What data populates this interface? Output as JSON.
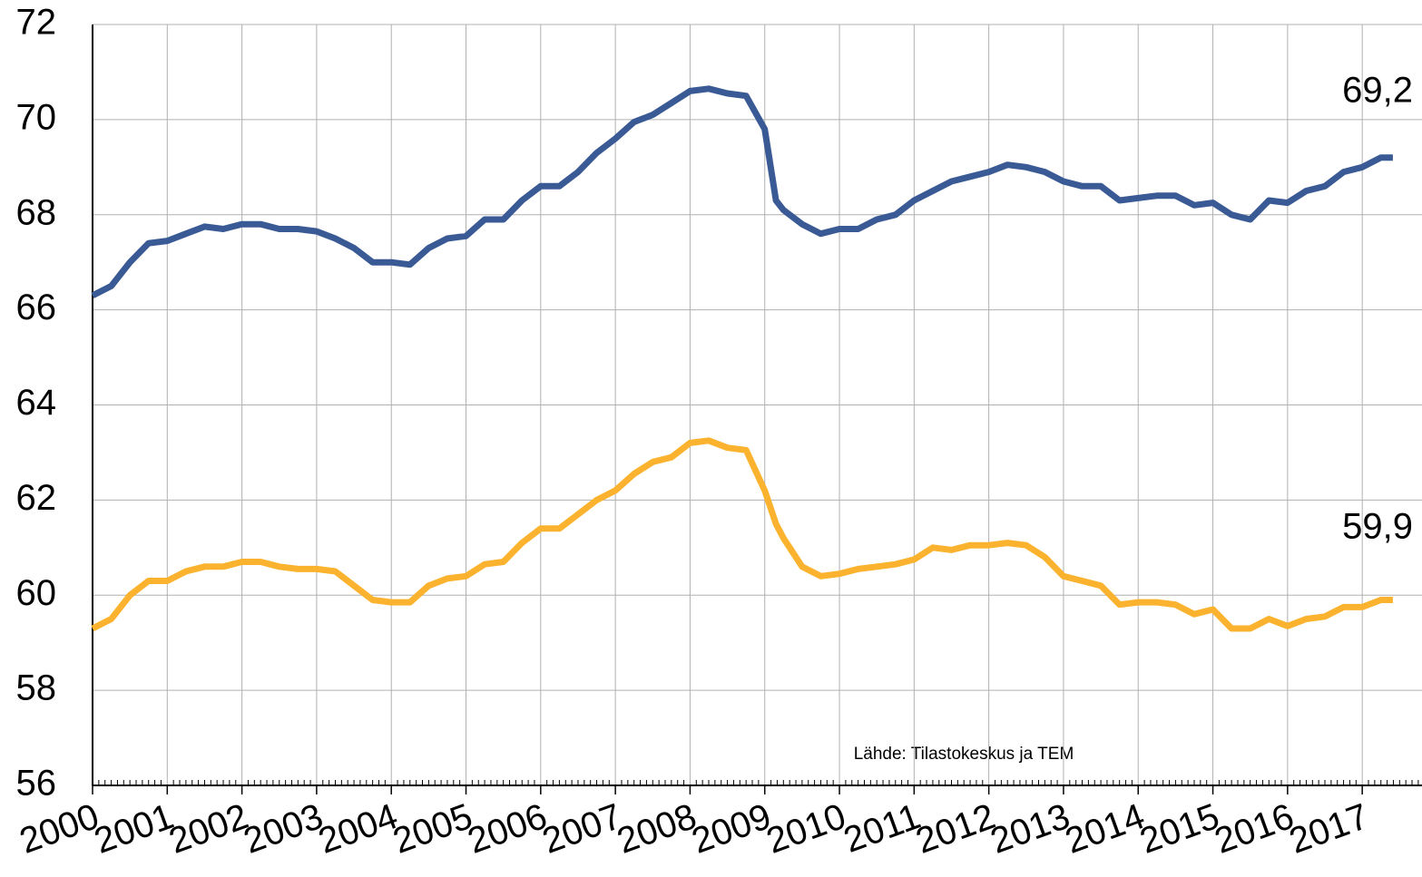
{
  "chart_data": {
    "type": "line",
    "annotations": [
      "69,2",
      "59,9",
      "Lähde: Tilastokeskus ja TEM"
    ],
    "x": [
      2000,
      2000.25,
      2000.5,
      2000.75,
      2001,
      2001.25,
      2001.5,
      2001.75,
      2002,
      2002.25,
      2002.5,
      2002.75,
      2003,
      2003.25,
      2003.5,
      2003.75,
      2004,
      2004.25,
      2004.5,
      2004.75,
      2005,
      2005.25,
      2005.5,
      2005.75,
      2006,
      2006.25,
      2006.5,
      2006.75,
      2007,
      2007.25,
      2007.5,
      2007.75,
      2008,
      2008.25,
      2008.5,
      2008.75,
      2009,
      2009.15,
      2009.25,
      2009.5,
      2009.75,
      2010,
      2010.25,
      2010.5,
      2010.75,
      2011,
      2011.25,
      2011.5,
      2011.75,
      2012,
      2012.25,
      2012.5,
      2012.75,
      2013,
      2013.25,
      2013.5,
      2013.75,
      2014,
      2014.25,
      2014.5,
      2014.75,
      2015,
      2015.25,
      2015.5,
      2015.75,
      2016,
      2016.25,
      2016.5,
      2016.75,
      2017,
      2017.25,
      2017.41
    ],
    "series": [
      {
        "color": "#3a5a95",
        "values": [
          66.3,
          66.5,
          67.0,
          67.4,
          67.45,
          67.6,
          67.75,
          67.7,
          67.8,
          67.8,
          67.7,
          67.7,
          67.65,
          67.5,
          67.3,
          67.0,
          67.0,
          66.95,
          67.3,
          67.5,
          67.55,
          67.9,
          67.9,
          68.3,
          68.6,
          68.6,
          68.9,
          69.3,
          69.6,
          69.95,
          70.1,
          70.35,
          70.6,
          70.65,
          70.55,
          70.5,
          69.8,
          68.3,
          68.1,
          67.8,
          67.6,
          67.7,
          67.7,
          67.9,
          68.0,
          68.3,
          68.5,
          68.7,
          68.8,
          68.9,
          69.05,
          69.0,
          68.9,
          68.7,
          68.6,
          68.6,
          68.3,
          68.35,
          68.4,
          68.4,
          68.2,
          68.25,
          68.0,
          67.9,
          68.3,
          68.25,
          68.5,
          68.6,
          68.9,
          69.0,
          69.2,
          69.2
        ]
      },
      {
        "color": "#fbb32f",
        "values": [
          59.3,
          59.5,
          60.0,
          60.3,
          60.3,
          60.5,
          60.6,
          60.6,
          60.7,
          60.7,
          60.6,
          60.55,
          60.55,
          60.5,
          60.2,
          59.9,
          59.85,
          59.85,
          60.2,
          60.35,
          60.4,
          60.65,
          60.7,
          61.1,
          61.4,
          61.4,
          61.7,
          62.0,
          62.2,
          62.55,
          62.8,
          62.9,
          63.2,
          63.25,
          63.1,
          63.05,
          62.2,
          61.5,
          61.2,
          60.6,
          60.4,
          60.45,
          60.55,
          60.6,
          60.65,
          60.75,
          61.0,
          60.95,
          61.05,
          61.05,
          61.1,
          61.05,
          60.8,
          60.4,
          60.3,
          60.2,
          59.8,
          59.85,
          59.85,
          59.8,
          59.6,
          59.7,
          59.3,
          59.3,
          59.5,
          59.35,
          59.5,
          59.55,
          59.75,
          59.75,
          59.9,
          59.9
        ]
      }
    ],
    "xlim": [
      2000,
      2017.8
    ],
    "xticks": [
      2000,
      2001,
      2002,
      2003,
      2004,
      2005,
      2006,
      2007,
      2008,
      2009,
      2010,
      2011,
      2012,
      2013,
      2014,
      2015,
      2016,
      2017
    ],
    "ylim": [
      56,
      72
    ],
    "yticks": [
      56,
      58,
      60,
      62,
      64,
      66,
      68,
      70,
      72
    ],
    "grid": true
  }
}
